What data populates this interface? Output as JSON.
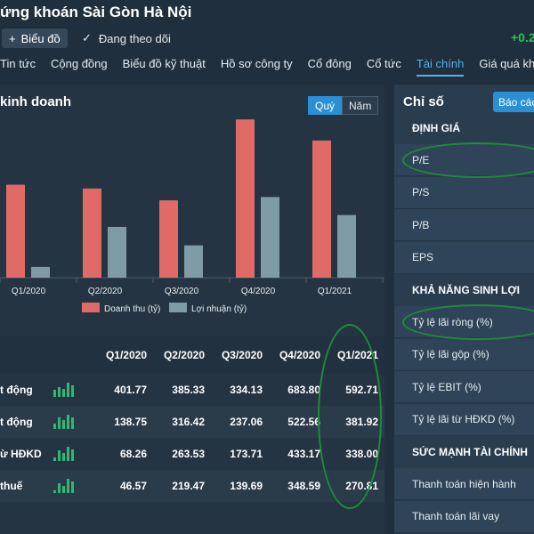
{
  "header": {
    "title": "ứng khoán Sài Gòn Hà Nội",
    "chart_button": "Biểu đồ",
    "follow_button": "Đang theo dõi",
    "price_change": "+0.2"
  },
  "tabs": [
    "Tin tức",
    "Cộng đồng",
    "Biểu đồ kỹ thuật",
    "Hồ sơ công ty",
    "Cổ đông",
    "Cổ tức",
    "Tài chính",
    "Giá quá khứ"
  ],
  "active_tab": "Tài chính",
  "business": {
    "title": "kinh doanh",
    "period_quarter": "Quý",
    "period_year": "Năm"
  },
  "chart_data": {
    "type": "bar",
    "categories": [
      "Q1/2020",
      "Q2/2020",
      "Q3/2020",
      "Q4/2020",
      "Q1/2021"
    ],
    "series": [
      {
        "name": "Doanh thu (tỷ)",
        "values": [
          401.77,
          385.33,
          334.13,
          683.8,
          592.71
        ],
        "color": "#e06b66"
      },
      {
        "name": "Lợi nhuận (tỷ)",
        "values": [
          46.57,
          219.47,
          139.69,
          348.59,
          270.81
        ],
        "color": "#7f9ba5"
      }
    ],
    "ylim": [
      0,
      700
    ],
    "legend": "bottom"
  },
  "table": {
    "headers": [
      "Q1/2020",
      "Q2/2020",
      "Q3/2020",
      "Q4/2020",
      "Q1/2021"
    ],
    "rows": [
      {
        "label": "t động",
        "values": [
          "401.77",
          "385.33",
          "334.13",
          "683.80",
          "592.71"
        ]
      },
      {
        "label": "t động",
        "values": [
          "138.75",
          "316.42",
          "237.06",
          "522.56",
          "381.92"
        ]
      },
      {
        "label": "ừ HĐKD",
        "values": [
          "68.26",
          "263.53",
          "173.71",
          "433.17",
          "338.00"
        ]
      },
      {
        "label": "thuế",
        "values": [
          "46.57",
          "219.47",
          "139.69",
          "348.59",
          "270.81"
        ]
      }
    ]
  },
  "ratios": {
    "title": "Chỉ số",
    "report_button": "Báo cáo",
    "items": [
      {
        "label": "ĐỊNH GIÁ",
        "type": "head"
      },
      {
        "label": "P/E",
        "type": "row"
      },
      {
        "label": "P/S",
        "type": "row"
      },
      {
        "label": "P/B",
        "type": "row"
      },
      {
        "label": "EPS",
        "type": "row"
      },
      {
        "label": "KHẢ NĂNG SINH LỢI",
        "type": "head"
      },
      {
        "label": "Tỷ lệ lãi ròng (%)",
        "type": "row"
      },
      {
        "label": "Tỷ lệ lãi gộp (%)",
        "type": "row"
      },
      {
        "label": "Tỷ lệ EBIT (%)",
        "type": "row"
      },
      {
        "label": "Tỷ lệ lãi từ HĐKD (%)",
        "type": "row"
      },
      {
        "label": "SỨC MẠNH TÀI CHÍNH",
        "type": "head"
      },
      {
        "label": "Thanh toán hiện hành",
        "type": "row"
      },
      {
        "label": "Thanh toán lãi vay",
        "type": "row"
      }
    ]
  }
}
